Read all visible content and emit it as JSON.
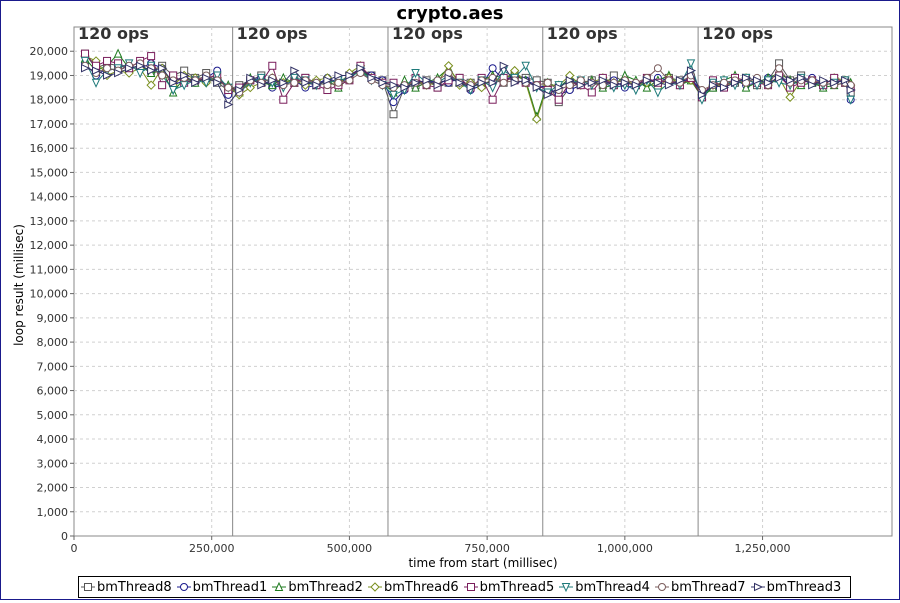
{
  "chart_data": {
    "type": "line",
    "title": "crypto.aes",
    "xlabel": "time from start (millisec)",
    "ylabel": "loop result (millisec)",
    "xlim": [
      0,
      1485000
    ],
    "ylim": [
      0,
      21000
    ],
    "x_ticks": [
      0,
      250000,
      500000,
      750000,
      1000000,
      1250000
    ],
    "x_tick_labels": [
      "0",
      "250,000",
      "500,000",
      "750,000",
      "1,000,000",
      "1,250,000"
    ],
    "y_ticks": [
      0,
      1000,
      2000,
      3000,
      4000,
      5000,
      6000,
      7000,
      8000,
      9000,
      10000,
      11000,
      12000,
      13000,
      14000,
      15000,
      16000,
      17000,
      18000,
      19000,
      20000
    ],
    "y_tick_labels": [
      "0",
      "1,000",
      "2,000",
      "3,000",
      "4,000",
      "5,000",
      "6,000",
      "7,000",
      "8,000",
      "9,000",
      "10,000",
      "11,000",
      "12,000",
      "13,000",
      "14,000",
      "15,000",
      "16,000",
      "17,000",
      "18,000",
      "19,000",
      "20,000"
    ],
    "grid": true,
    "legend_position": "bottom",
    "phase_markers": [
      {
        "x": 0,
        "label": "120 ops"
      },
      {
        "x": 288000,
        "label": "120 ops"
      },
      {
        "x": 570000,
        "label": "120 ops"
      },
      {
        "x": 851000,
        "label": "120 ops"
      },
      {
        "x": 1133000,
        "label": "120 ops"
      }
    ],
    "x": [
      20000,
      40000,
      60000,
      80000,
      100000,
      120000,
      140000,
      160000,
      180000,
      200000,
      220000,
      240000,
      260000,
      280000,
      300000,
      320000,
      340000,
      360000,
      380000,
      400000,
      420000,
      440000,
      460000,
      480000,
      500000,
      520000,
      540000,
      560000,
      580000,
      600000,
      620000,
      640000,
      660000,
      680000,
      700000,
      720000,
      740000,
      760000,
      780000,
      800000,
      820000,
      840000,
      860000,
      880000,
      900000,
      920000,
      940000,
      960000,
      980000,
      1000000,
      1020000,
      1040000,
      1060000,
      1080000,
      1100000,
      1120000,
      1140000,
      1160000,
      1180000,
      1200000,
      1220000,
      1240000,
      1260000,
      1280000,
      1300000,
      1320000,
      1340000,
      1360000,
      1380000,
      1400000,
      1410000
    ],
    "series": [
      {
        "name": "bmThread8",
        "marker": "square",
        "color": "#555555",
        "values": [
          19900,
          19300,
          19500,
          19400,
          19300,
          19400,
          19200,
          19400,
          19000,
          19200,
          18900,
          19100,
          18700,
          18400,
          18600,
          18800,
          19000,
          18600,
          18700,
          18800,
          18900,
          18700,
          18800,
          18700,
          19000,
          19200,
          19000,
          18800,
          17400,
          18500,
          18600,
          18800,
          18500,
          18700,
          18900,
          18700,
          18600,
          18800,
          18700,
          19000,
          18900,
          18800,
          18700,
          17900,
          18500,
          18700,
          18800,
          18600,
          19000,
          18700,
          18600,
          18800,
          18700,
          18900,
          18800,
          18900,
          18200,
          18500,
          18600,
          18700,
          18900,
          18600,
          18800,
          19500,
          18800,
          19000,
          18700,
          18600,
          18700,
          18800,
          18300
        ]
      },
      {
        "name": "bmThread1",
        "marker": "circle",
        "color": "#1a1a8c",
        "values": [
          19500,
          19000,
          19300,
          19200,
          19400,
          19300,
          19500,
          19300,
          18600,
          18800,
          18700,
          18900,
          19200,
          18200,
          18500,
          18800,
          18900,
          18500,
          18600,
          18800,
          18500,
          18600,
          18900,
          18700,
          18900,
          19300,
          19000,
          18800,
          17900,
          18400,
          18800,
          18700,
          18800,
          18700,
          18900,
          18400,
          18600,
          19300,
          18800,
          19000,
          18800,
          18600,
          18500,
          18200,
          18400,
          18600,
          18700,
          18600,
          18800,
          18500,
          18600,
          18700,
          18900,
          18800,
          18700,
          18900,
          18300,
          18500,
          18700,
          18800,
          18600,
          18700,
          18900,
          19000,
          18600,
          18800,
          18900,
          18700,
          18800,
          18700,
          18000
        ]
      },
      {
        "name": "bmThread2",
        "marker": "triangle-up",
        "color": "#1e7a1e",
        "values": [
          19700,
          19200,
          19400,
          19900,
          19300,
          19400,
          19100,
          19200,
          18300,
          18900,
          18700,
          18900,
          18800,
          18600,
          18300,
          18900,
          18700,
          18600,
          18900,
          18700,
          18800,
          18600,
          18800,
          18500,
          18900,
          19200,
          18900,
          18700,
          18300,
          18800,
          18500,
          18700,
          18900,
          19300,
          18700,
          18600,
          18800,
          19000,
          18900,
          19000,
          18800,
          17300,
          18700,
          18500,
          18900,
          18700,
          18800,
          18500,
          18600,
          19000,
          18800,
          18500,
          18800,
          19000,
          18600,
          18800,
          18100,
          18500,
          18800,
          19000,
          18500,
          18700,
          18900,
          19100,
          18800,
          18600,
          18700,
          18500,
          18600,
          18700,
          18700
        ]
      },
      {
        "name": "bmThread6",
        "marker": "diamond",
        "color": "#7a8f1e",
        "values": [
          19800,
          19600,
          19000,
          19200,
          19100,
          19300,
          18600,
          19300,
          18600,
          19000,
          18900,
          18700,
          18900,
          18500,
          18200,
          18500,
          18700,
          18900,
          18700,
          18800,
          18600,
          18800,
          18900,
          18600,
          19100,
          19400,
          18900,
          18700,
          18600,
          18500,
          18800,
          18600,
          18700,
          19400,
          18600,
          18700,
          18500,
          18900,
          18800,
          19200,
          18700,
          17200,
          18600,
          18600,
          19000,
          18600,
          18700,
          18900,
          18700,
          18800,
          18600,
          18700,
          18500,
          18900,
          18700,
          18800,
          18200,
          18600,
          18600,
          18700,
          18900,
          18800,
          18600,
          18900,
          18100,
          18800,
          18700,
          18600,
          18900,
          18800,
          18600
        ]
      },
      {
        "name": "bmThread5",
        "marker": "square-thin",
        "color": "#7a1e5c",
        "values": [
          19900,
          19400,
          19600,
          19500,
          19300,
          19600,
          19800,
          18600,
          19000,
          18700,
          18800,
          18900,
          19000,
          18400,
          18500,
          18800,
          18700,
          19400,
          18000,
          18700,
          18900,
          18600,
          18400,
          18600,
          18800,
          19400,
          18900,
          18700,
          18700,
          18500,
          18900,
          18600,
          18500,
          18800,
          18900,
          18500,
          18900,
          18000,
          18900,
          18800,
          18700,
          18600,
          18400,
          18000,
          18700,
          18600,
          18300,
          18900,
          18600,
          18700,
          18600,
          18900,
          18700,
          18800,
          18600,
          18900,
          18100,
          18800,
          18500,
          18900,
          18800,
          18700,
          18600,
          19000,
          18500,
          18700,
          18800,
          18600,
          18900,
          18700,
          18500
        ]
      },
      {
        "name": "bmThread4",
        "marker": "triangle-down",
        "color": "#1e7a7a",
        "values": [
          19600,
          18700,
          19200,
          19300,
          19500,
          19100,
          19400,
          19000,
          18400,
          18600,
          18800,
          18700,
          19000,
          18500,
          18300,
          18700,
          18900,
          18700,
          18500,
          18900,
          18800,
          18600,
          18700,
          18800,
          18900,
          19200,
          18800,
          18600,
          18200,
          18400,
          19100,
          18700,
          18700,
          19000,
          18700,
          18400,
          18800,
          18500,
          19200,
          18900,
          19400,
          18500,
          18300,
          18600,
          18700,
          18800,
          18600,
          18700,
          18500,
          18600,
          18400,
          18800,
          18300,
          18700,
          18600,
          19500,
          18000,
          18700,
          18800,
          18600,
          18900,
          18600,
          18800,
          18700,
          18600,
          18900,
          18700,
          18600,
          18700,
          18800,
          18000
        ]
      },
      {
        "name": "bmThread7",
        "marker": "circle-thin",
        "color": "#7a5c5c",
        "values": [
          19400,
          19100,
          19300,
          19200,
          19400,
          19500,
          19300,
          19000,
          18800,
          18900,
          18800,
          19000,
          18800,
          18500,
          18300,
          18800,
          18700,
          18900,
          18600,
          18700,
          18800,
          18700,
          18600,
          18700,
          18800,
          19100,
          18800,
          18600,
          18500,
          18600,
          18700,
          18600,
          18800,
          19100,
          18700,
          18600,
          18800,
          18900,
          18700,
          18800,
          18700,
          18600,
          18700,
          18400,
          18600,
          18800,
          18700,
          18600,
          18700,
          18800,
          18700,
          18900,
          19300,
          18800,
          18700,
          19000,
          18400,
          18600,
          18700,
          18800,
          18700,
          18900,
          18600,
          19300,
          18700,
          18800,
          18800,
          18700,
          18600,
          18700,
          18600
        ]
      },
      {
        "name": "bmThread3",
        "marker": "triangle-right",
        "color": "#333366",
        "values": [
          19300,
          19200,
          19000,
          19100,
          19300,
          19400,
          19200,
          19300,
          18700,
          19000,
          18700,
          18900,
          18700,
          17800,
          18400,
          18900,
          18600,
          18800,
          18700,
          19200,
          18700,
          18600,
          18800,
          19000,
          19000,
          19300,
          18900,
          18700,
          18600,
          18500,
          18700,
          18800,
          18600,
          18900,
          18700,
          18500,
          18700,
          18700,
          19400,
          18700,
          18800,
          18500,
          18200,
          18500,
          18800,
          18600,
          18700,
          18800,
          18600,
          18700,
          18600,
          18800,
          18700,
          18600,
          18800,
          19200,
          18200,
          18600,
          18500,
          18700,
          18900,
          18800,
          18700,
          18900,
          18800,
          18900,
          18600,
          18800,
          18700,
          18800,
          18400
        ]
      }
    ]
  }
}
